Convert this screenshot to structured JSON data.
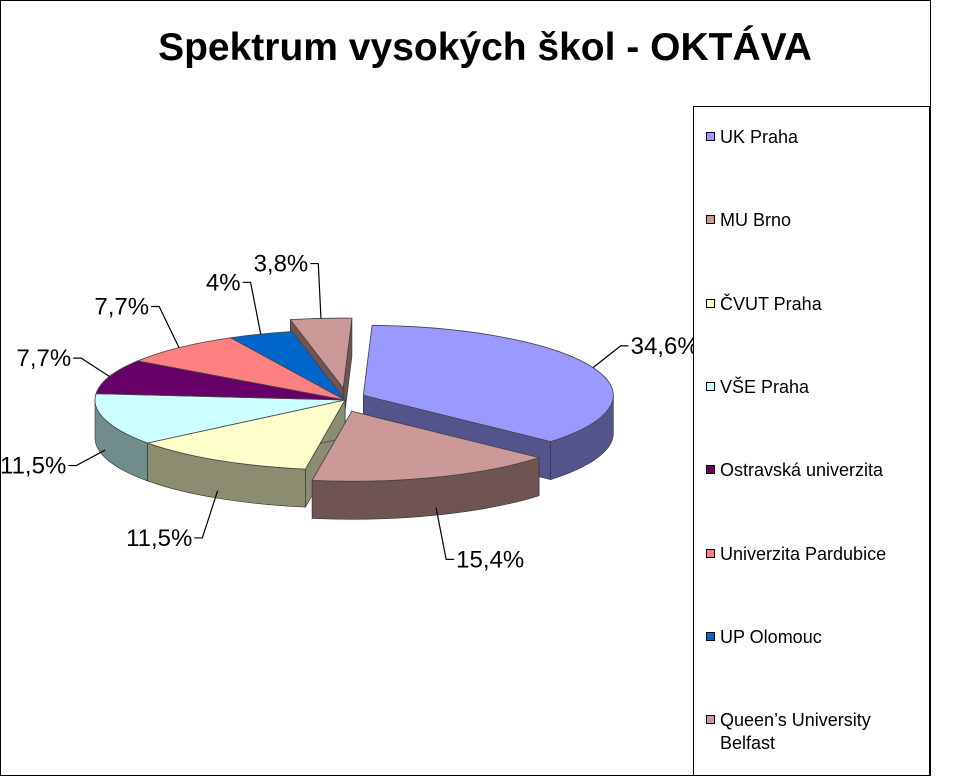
{
  "chart_data": {
    "type": "pie",
    "title": "Spektrum vysokých škol - OKTÁVA",
    "legend_position": "right",
    "slices": [
      {
        "name": "UK Praha",
        "value": 34.6,
        "label": "34,6%",
        "color": "#9999ff",
        "exploded": true
      },
      {
        "name": "MU Brno",
        "value": 15.4,
        "label": "15,4%",
        "color": "#cc9999",
        "exploded": true
      },
      {
        "name": "ČVUT Praha",
        "value": 11.5,
        "label": "11,5%",
        "color": "#ffffcc",
        "exploded": false
      },
      {
        "name": "VŠE Praha",
        "value": 11.5,
        "label": "11,5%",
        "color": "#ccffff",
        "exploded": false
      },
      {
        "name": "Ostravská univerzita",
        "value": 7.7,
        "label": "7,7%",
        "color": "#660066",
        "exploded": false
      },
      {
        "name": "Univerzita Pardubice",
        "value": 7.7,
        "label": "7,7%",
        "color": "#ff8080",
        "exploded": false
      },
      {
        "name": "UP Olomouc",
        "value": 4,
        "label": "4%",
        "color": "#0066cc",
        "exploded": false
      },
      {
        "name": "Queen’s University Belfast",
        "value": 3.8,
        "label": "3,8%",
        "color": "#cc9999",
        "exploded": true
      }
    ]
  }
}
